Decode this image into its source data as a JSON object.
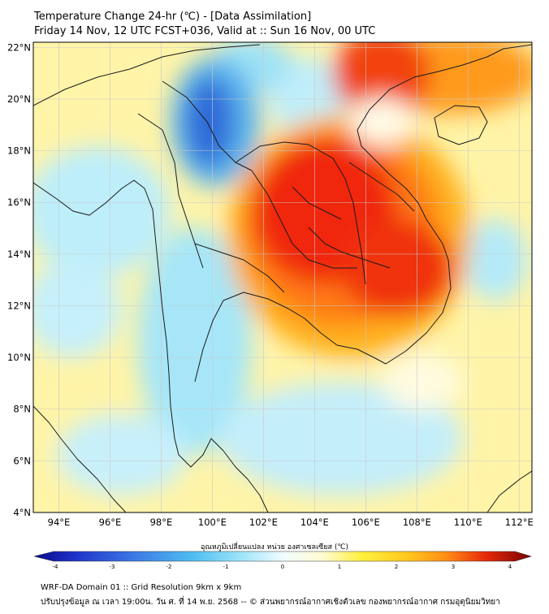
{
  "title": {
    "line1": "Temperature Change 24-hr (℃) - [Data Assimilation]",
    "line2": "Friday 14 Nov, 12 UTC FCST+036, Valid at :: Sun 16 Nov, 00 UTC"
  },
  "map": {
    "lon_range": [
      93,
      112.5
    ],
    "lat_range": [
      4,
      22.2
    ],
    "lon_ticks": [
      "94°E",
      "96°E",
      "98°E",
      "100°E",
      "102°E",
      "104°E",
      "106°E",
      "108°E",
      "110°E",
      "112°E"
    ],
    "lat_ticks": [
      "22°N",
      "20°N",
      "18°N",
      "16°N",
      "14°N",
      "12°N",
      "10°N",
      "8°N",
      "6°N",
      "4°N"
    ]
  },
  "colorbar": {
    "title": "อุณหภูมิเปลี่ยนแปลง หน่วย องศาเซลเซียส (℃)",
    "ticks": [
      "-4",
      "-3",
      "-2",
      "-1",
      "0",
      "1",
      "2",
      "3",
      "4"
    ],
    "min": -4,
    "max": 4,
    "colors": [
      "#0a0a8c",
      "#1e32c8",
      "#3c78e6",
      "#50bef0",
      "#a0e6fa",
      "#e6fafe",
      "#fffad2",
      "#fff03c",
      "#ffc81e",
      "#ff8c14",
      "#f03c0a",
      "#c8140a",
      "#780000"
    ]
  },
  "footer": {
    "line1": "WRF-DA Domain 01 :: Grid Resolution 9km x 9km",
    "line2": "ปรับปรุงข้อมูล ณ เวลา 19:00น. วัน ศ. ที่ 14 พ.ย. 2568 -- © ส่วนพยากรณ์อากาศเชิงตัวเลข กองพยากรณ์อากาศ กรมอุตุนิยมวิทยา"
  },
  "colors": {
    "background": "#fff4a8",
    "land_outline": "#1a1a1a",
    "grid": "#c8c8c8"
  }
}
